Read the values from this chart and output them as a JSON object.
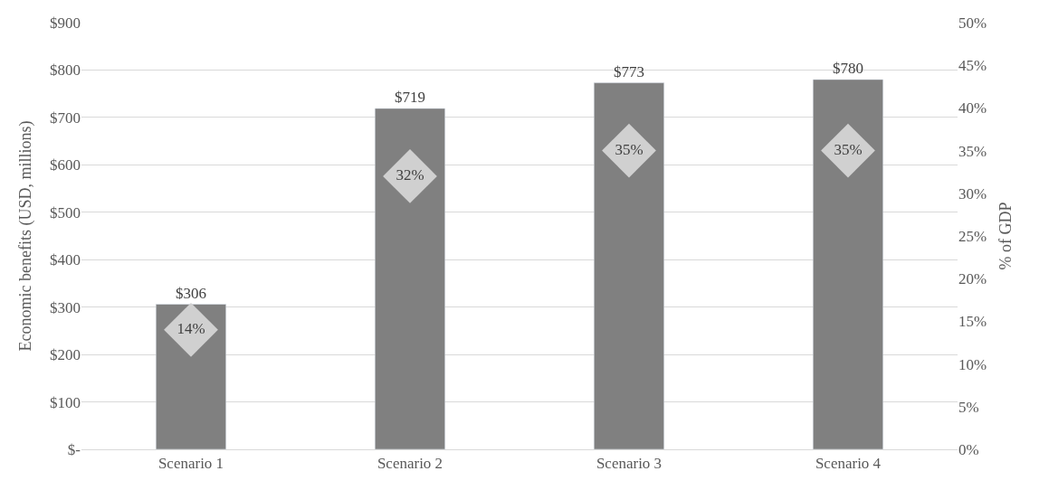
{
  "chart_data": {
    "type": "bar",
    "ylabel": "Economic benefits (USD, millions)",
    "y2label": "% of GDP",
    "categories": [
      "Scenario 1",
      "Scenario 2",
      "Scenario 3",
      "Scenario 4"
    ],
    "series": [
      {
        "color": "#808080",
        "values": [
          306,
          719,
          773,
          780
        ],
        "value_labels": [
          "$306",
          "$719",
          "$773",
          "$780"
        ]
      },
      {
        "type": "scatter",
        "axis": "y2",
        "marker": "diamond",
        "color": "#d0d0d0",
        "values": [
          14,
          32,
          35,
          35
        ],
        "value_labels": [
          "14%",
          "32%",
          "35%",
          "35%"
        ]
      }
    ],
    "ylim": [
      0,
      900
    ],
    "yticks": [
      {
        "value": 0,
        "label": "$-"
      },
      {
        "value": 100,
        "label": "$100"
      },
      {
        "value": 200,
        "label": "$200"
      },
      {
        "value": 300,
        "label": "$300"
      },
      {
        "value": 400,
        "label": "$400"
      },
      {
        "value": 500,
        "label": "$500"
      },
      {
        "value": 600,
        "label": "$600"
      },
      {
        "value": 700,
        "label": "$700"
      },
      {
        "value": 800,
        "label": "$800"
      },
      {
        "value": 900,
        "label": "$900"
      }
    ],
    "y2lim": [
      0,
      50
    ],
    "y2ticks": [
      {
        "value": 0,
        "label": "0%"
      },
      {
        "value": 5,
        "label": "5%"
      },
      {
        "value": 10,
        "label": "10%"
      },
      {
        "value": 15,
        "label": "15%"
      },
      {
        "value": 20,
        "label": "20%"
      },
      {
        "value": 25,
        "label": "25%"
      },
      {
        "value": 30,
        "label": "30%"
      },
      {
        "value": 35,
        "label": "35%"
      },
      {
        "value": 40,
        "label": "40%"
      },
      {
        "value": 45,
        "label": "45%"
      },
      {
        "value": 50,
        "label": "50%"
      }
    ],
    "grid": "y",
    "legend": false
  }
}
